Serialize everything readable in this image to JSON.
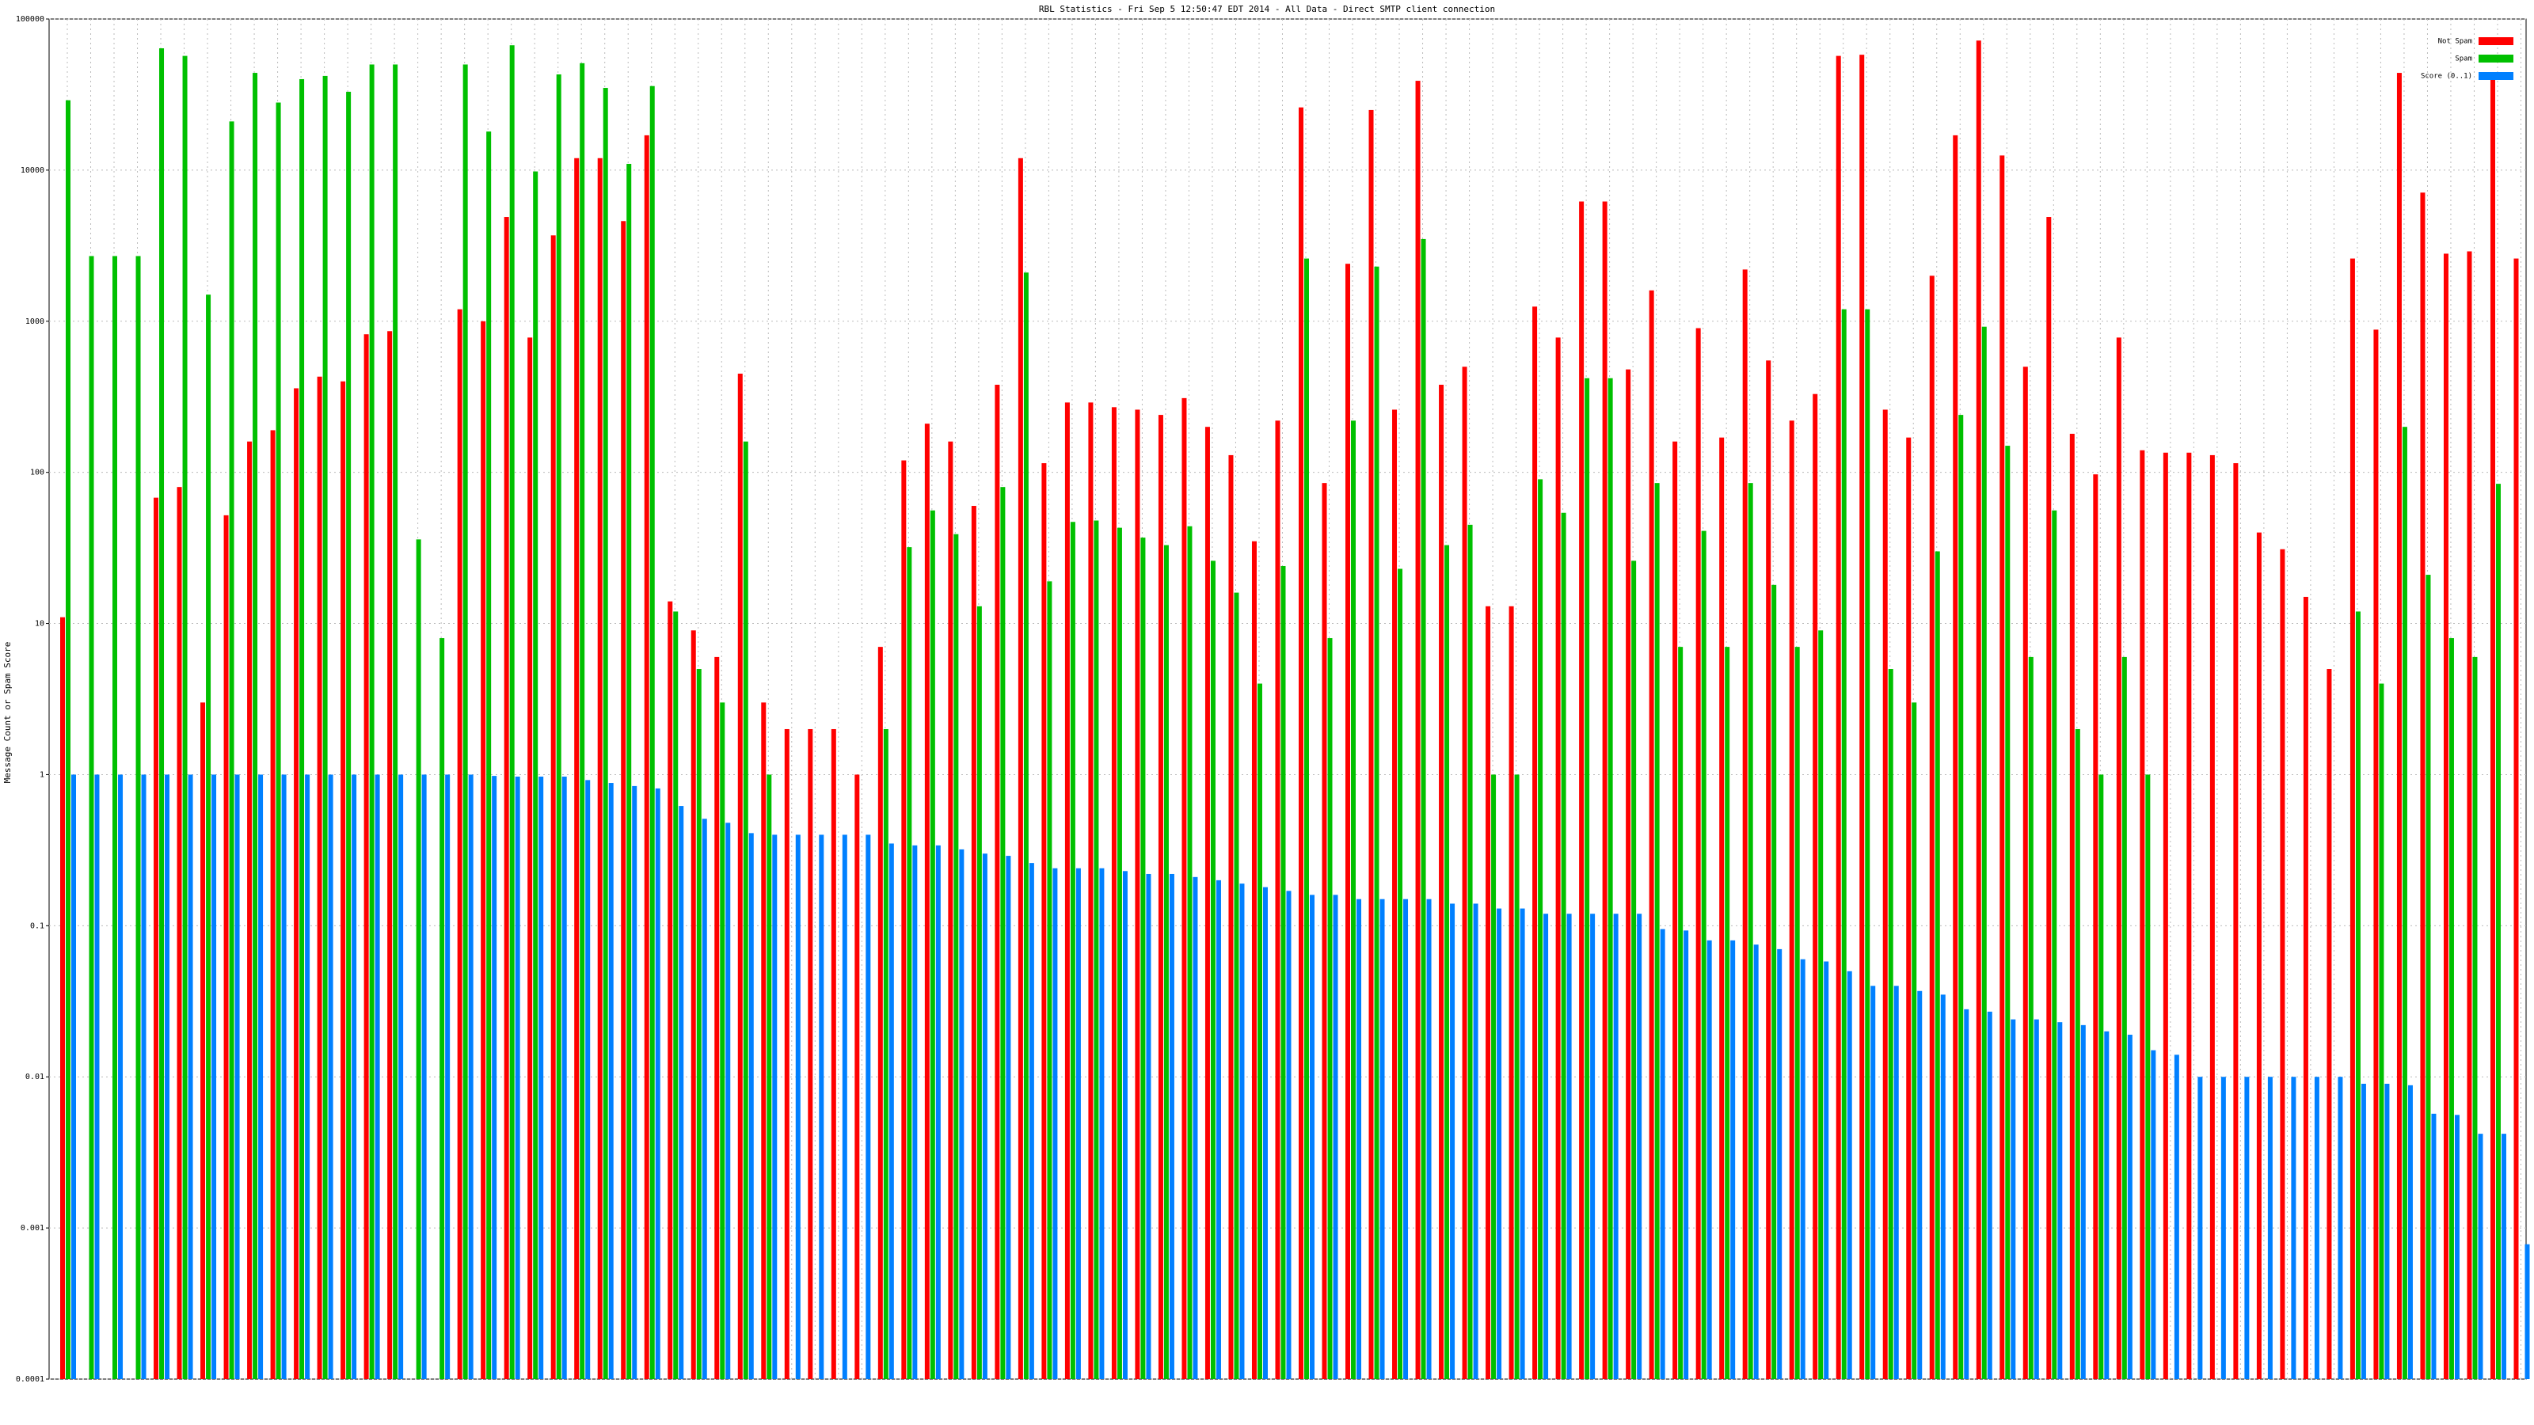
{
  "chart_data": {
    "type": "bar",
    "title": "RBL Statistics - Fri Sep  5 12:50:47 EDT 2014 - All Data - Direct SMTP client connection",
    "y_label": "Message Count or Spam Score",
    "log_scale": true,
    "grid": true,
    "legend": "upper right",
    "ylim": [
      0.0001,
      100000
    ],
    "yticks": [
      0.0001,
      0.001,
      0.01,
      0.1,
      1,
      10,
      100,
      1000,
      10000,
      100000
    ],
    "categories": [
      null,
      null,
      null,
      null,
      null,
      null,
      null,
      null,
      null,
      null,
      null,
      null,
      null,
      null,
      null,
      null,
      null,
      null,
      null,
      null,
      null,
      null,
      null,
      null,
      null,
      null,
      null,
      null,
      null,
      null,
      null,
      null,
      null,
      null,
      null,
      null,
      null,
      null,
      null,
      null,
      null,
      null,
      null,
      null,
      null,
      null,
      null,
      null,
      null,
      null,
      null,
      null,
      null,
      null,
      null,
      null,
      null,
      null,
      null,
      null,
      null,
      null,
      null,
      null,
      null,
      null,
      null,
      null,
      null,
      null,
      null,
      null,
      null,
      null,
      null,
      null,
      null,
      null,
      null,
      null,
      null,
      null,
      null,
      null,
      null,
      null,
      null,
      null,
      null,
      null,
      null,
      null,
      null,
      null,
      null,
      null,
      null,
      null,
      null,
      null,
      null,
      null,
      null,
      null,
      null,
      null
    ],
    "series": [
      {
        "name": "Not Spam",
        "color": "#ff0000",
        "values": [
          11,
          null,
          null,
          null,
          68,
          80,
          3,
          52,
          160,
          190,
          360,
          430,
          400,
          820,
          860,
          null,
          null,
          1200,
          1000,
          4900,
          780,
          3700,
          12000,
          12000,
          4600,
          17000,
          14,
          9,
          6,
          450,
          3,
          2,
          2,
          2,
          1,
          7,
          120,
          210,
          160,
          60,
          380,
          12000,
          115,
          290,
          290,
          270,
          260,
          240,
          310,
          200,
          130,
          35,
          220,
          26000,
          85,
          2400,
          25000,
          260,
          39000,
          380,
          500,
          13,
          13,
          1250,
          780,
          6200,
          6200,
          480,
          1600,
          160,
          900,
          170,
          2200,
          550,
          220,
          330,
          57000,
          58000,
          260,
          170,
          2000,
          17000,
          72000,
          12500,
          500,
          4900,
          180,
          97,
          780,
          140,
          135,
          135,
          130,
          115,
          40,
          31,
          15,
          5,
          2600,
          880,
          44000,
          7100,
          2800,
          2900,
          41000,
          2600
        ]
      },
      {
        "name": "Spam",
        "color": "#00c000",
        "values": [
          29000,
          2700,
          2700,
          2700,
          64000,
          57000,
          1500,
          21000,
          44000,
          28000,
          40000,
          42000,
          33000,
          50000,
          50000,
          36,
          8,
          50000,
          18000,
          67000,
          9800,
          43000,
          51000,
          35000,
          11000,
          36000,
          12,
          5,
          3,
          160,
          1,
          null,
          null,
          null,
          null,
          2,
          32,
          56,
          39,
          13,
          80,
          2100,
          19,
          47,
          48,
          43,
          37,
          33,
          44,
          26,
          16,
          4,
          24,
          2600,
          8,
          220,
          2300,
          23,
          3500,
          33,
          45,
          1,
          1,
          90,
          54,
          420,
          420,
          26,
          85,
          7,
          41,
          7,
          85,
          18,
          7,
          9,
          1200,
          1200,
          5,
          3,
          30,
          240,
          920,
          150,
          6,
          56,
          2,
          1,
          6,
          1,
          null,
          null,
          null,
          null,
          null,
          null,
          null,
          null,
          12,
          4,
          200,
          21,
          8,
          6,
          84,
          null
        ]
      },
      {
        "name": "Score (0..1)",
        "color": "#0080ff",
        "values": [
          1,
          1,
          1,
          1,
          1,
          1,
          1,
          1,
          1,
          1,
          1,
          1,
          1,
          1,
          1,
          1,
          1,
          1,
          0.98,
          0.97,
          0.97,
          0.97,
          0.92,
          0.88,
          0.84,
          0.81,
          0.62,
          0.51,
          0.48,
          0.41,
          0.4,
          0.4,
          0.4,
          0.4,
          0.4,
          0.35,
          0.34,
          0.34,
          0.32,
          0.3,
          0.29,
          0.26,
          0.24,
          0.24,
          0.24,
          0.23,
          0.22,
          0.22,
          0.21,
          0.2,
          0.19,
          0.18,
          0.17,
          0.16,
          0.16,
          0.15,
          0.15,
          0.15,
          0.15,
          0.14,
          0.14,
          0.13,
          0.13,
          0.12,
          0.12,
          0.12,
          0.12,
          0.12,
          0.095,
          0.093,
          0.08,
          0.08,
          0.075,
          0.07,
          0.06,
          0.058,
          0.05,
          0.04,
          0.04,
          0.037,
          0.035,
          0.028,
          0.027,
          0.024,
          0.024,
          0.023,
          0.022,
          0.02,
          0.019,
          0.015,
          0.014,
          0.01,
          0.01,
          0.01,
          0.01,
          0.01,
          0.01,
          0.01,
          0.009,
          0.009,
          0.0088,
          0.0057,
          0.0056,
          0.0042,
          0.0042,
          0.00078
        ]
      }
    ]
  }
}
